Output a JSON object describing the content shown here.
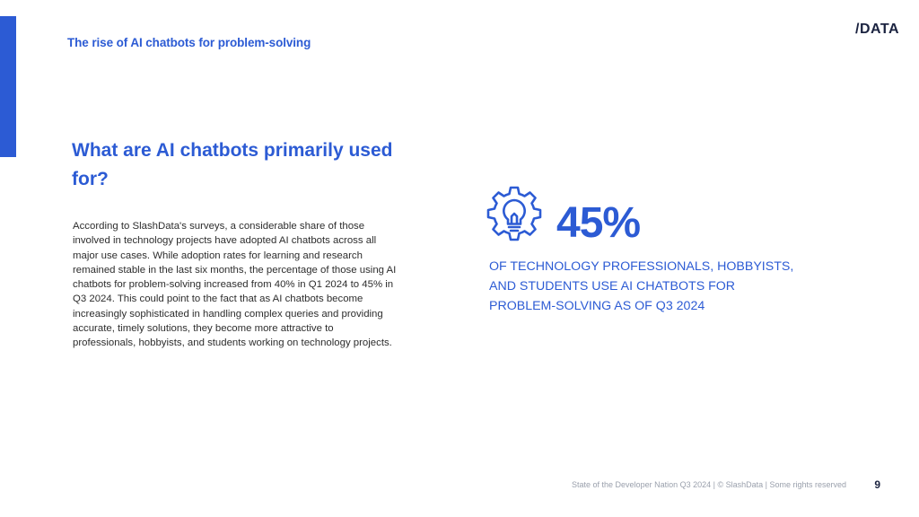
{
  "header": {
    "section_title": "The rise of AI chatbots for problem-solving",
    "logo_text": "DATA",
    "logo_slash": "/"
  },
  "main": {
    "question": "What are AI chatbots primarily used for?",
    "body": "According to SlashData's surveys, a considerable share of those involved in technology projects have adopted AI chatbots across all major use cases. While adoption rates for learning and research remained stable in the last six months, the percentage of those using AI chatbots for problem-solving increased from 40% in Q1 2024 to 45% in Q3 2024. This could point to the fact that as AI chatbots become increasingly sophisticated in handling complex queries and providing accurate, timely solutions, they become more attractive to professionals, hobbyists, and students working on technology projects."
  },
  "stat": {
    "icon": "lightbulb-gear-icon",
    "value": "45%",
    "caption": "OF TECHNOLOGY PROFESSIONALS, HOBBYISTS, AND STUDENTS USE AI CHATBOTS FOR PROBLEM-SOLVING AS OF Q3 2024"
  },
  "footer": {
    "text": "State of the Developer Nation Q3 2024 | © SlashData | Some rights reserved",
    "page_number": "9"
  },
  "colors": {
    "accent": "#2c5bd4",
    "text": "#2d2d2d",
    "muted": "#9aa0ac"
  }
}
